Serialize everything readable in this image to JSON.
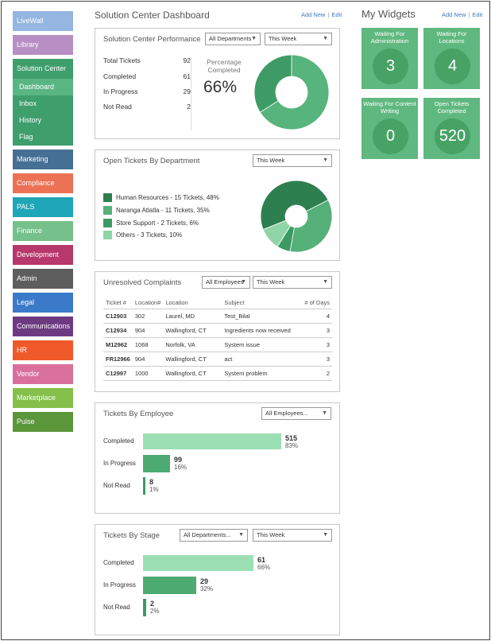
{
  "sidebar": {
    "items": [
      {
        "label": "LiveWall",
        "color": "#94b6e0"
      },
      {
        "label": "Library",
        "color": "#b78fc4"
      },
      {
        "label": "Solution Center",
        "color": "#3e9e6c",
        "children": [
          "Dashboard",
          "Inbox",
          "History",
          "Flag"
        ],
        "active_child": "Dashboard"
      },
      {
        "label": "Marketing",
        "color": "#466f94"
      },
      {
        "label": "Compliance",
        "color": "#ec7155"
      },
      {
        "label": "PALS",
        "color": "#1fa6b7"
      },
      {
        "label": "Finance",
        "color": "#75c08b"
      },
      {
        "label": "Development",
        "color": "#b7386b"
      },
      {
        "label": "Admin",
        "color": "#5e5e5e"
      },
      {
        "label": "Legal",
        "color": "#3a7ac9"
      },
      {
        "label": "Communications",
        "color": "#6d3a82"
      },
      {
        "label": "HR",
        "color": "#f05a2a"
      },
      {
        "label": "Vendor",
        "color": "#d9709c"
      },
      {
        "label": "Marketplace",
        "color": "#84c04a"
      },
      {
        "label": "Pulse",
        "color": "#5b963a"
      }
    ]
  },
  "header": {
    "title": "Solution Center Dashboard",
    "add_new": "Add New",
    "edit": "Edit",
    "separator": "|"
  },
  "widgets_header": {
    "title": "My Widgets",
    "add_new": "Add New",
    "edit": "Edit",
    "separator": "|"
  },
  "performance": {
    "title": "Solution Center Performance",
    "dept_select": "All Departments",
    "period_select": "This Week",
    "stats": [
      {
        "label": "Total Tickets",
        "value": "92"
      },
      {
        "label": "Completed",
        "value": "61"
      },
      {
        "label": "In Progress",
        "value": "29"
      },
      {
        "label": "Not Read",
        "value": "2"
      }
    ],
    "percent_label": "Percentage Completed",
    "percent_value": "66%",
    "donut": {
      "percent": 66,
      "fill": "#56b47c",
      "rest": "#3e9b66"
    }
  },
  "open_by_dept": {
    "title": "Open Tickets By Department",
    "period_select": "This Week",
    "legend": [
      {
        "label": "Human Resources - 15 Tickets, 48%",
        "color": "#2e7f50",
        "percent": 48
      },
      {
        "label": "Naranga Atlatla - 11 Tickets, 35%",
        "color": "#55b07a",
        "percent": 35
      },
      {
        "label": "Store Support - 2 Tickets, 6%",
        "color": "#3c9a63",
        "percent": 6
      },
      {
        "label": "Others - 3 Tickets, 10%",
        "color": "#8fd5a8",
        "percent": 10
      }
    ]
  },
  "complaints": {
    "title": "Unresolved Complaints",
    "employee_select": "All Employees",
    "period_select": "This Week",
    "columns": [
      "Ticket #",
      "Location#",
      "Location",
      "Subject",
      "# of Days"
    ],
    "rows": [
      [
        "C12903",
        "302",
        "Laurel, MD",
        "Test_Bilal",
        "4"
      ],
      [
        "C12934",
        "904",
        "Wallingford, CT",
        "Ingredients now received",
        "3"
      ],
      [
        "M12962",
        "1068",
        "Norfolk, VA",
        "System issue",
        "3"
      ],
      [
        "FR12966",
        "904",
        "Wallingford, CT",
        "act",
        "3"
      ],
      [
        "C12997",
        "1000",
        "Wallingford, CT",
        "System problem",
        "2"
      ]
    ]
  },
  "by_employee": {
    "title": "Tickets By Employee",
    "employee_select": "All Employees...",
    "bars": [
      {
        "label": "Completed",
        "value": "515",
        "pct": "83%",
        "fraction": 0.83,
        "color": "#9ddfb4"
      },
      {
        "label": "In Progress",
        "value": "99",
        "pct": "16%",
        "fraction": 0.16,
        "color": "#4dab72"
      },
      {
        "label": "Not Read",
        "value": "8",
        "pct": "1%",
        "fraction": 0.01,
        "color": "#3c9a63"
      }
    ]
  },
  "by_stage": {
    "title": "Tickets By Stage",
    "dept_select": "All Departments...",
    "period_select": "This Week",
    "bars": [
      {
        "label": "Completed",
        "value": "61",
        "pct": "66%",
        "fraction": 0.66,
        "color": "#9ddfb4"
      },
      {
        "label": "In Progress",
        "value": "29",
        "pct": "32%",
        "fraction": 0.32,
        "color": "#4dab72"
      },
      {
        "label": "Not Read",
        "value": "2",
        "pct": "2%",
        "fraction": 0.02,
        "color": "#3c9a63"
      }
    ]
  },
  "widgets": [
    {
      "label": "Waiting For Administration",
      "value": "3"
    },
    {
      "label": "Waiting For Locations",
      "value": "4"
    },
    {
      "label": "Waiting For Content Writing",
      "value": "0"
    },
    {
      "label": "Open Tickets Completed",
      "value": "520"
    }
  ]
}
